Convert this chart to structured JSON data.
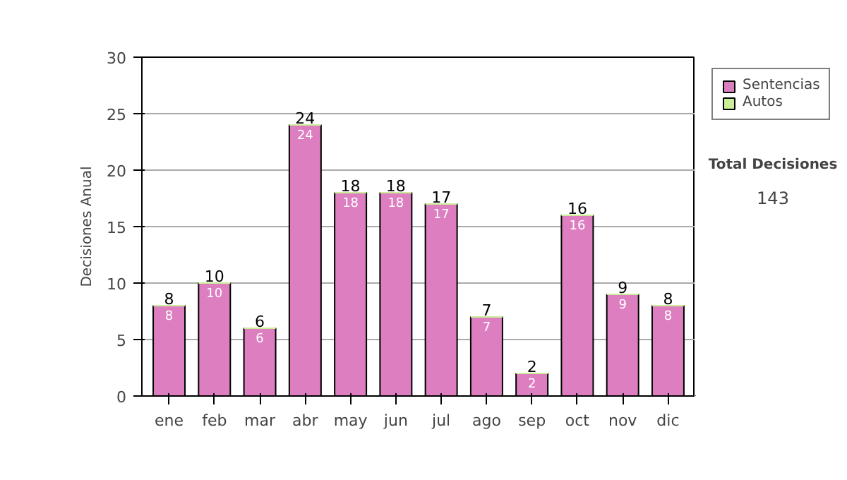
{
  "chart_data": {
    "type": "bar",
    "ylabel": "Decisiones Anual",
    "categories": [
      "ene",
      "feb",
      "mar",
      "abr",
      "may",
      "jun",
      "jul",
      "ago",
      "sep",
      "oct",
      "nov",
      "dic"
    ],
    "stacked": true,
    "series": [
      {
        "name": "Sentencias",
        "color": "#dd7ec0",
        "values": [
          8,
          10,
          6,
          24,
          18,
          18,
          17,
          7,
          2,
          16,
          9,
          8
        ],
        "value_labels": [
          "8",
          "10",
          "6",
          "24",
          "18",
          "18",
          "17",
          "7",
          "2",
          "16",
          "9",
          "8"
        ]
      },
      {
        "name": "Autos",
        "color": "#ccee99",
        "values": [
          0,
          0,
          0,
          0,
          0,
          0,
          0,
          0,
          0,
          0,
          0,
          0
        ]
      }
    ],
    "totals": [
      "8",
      "10",
      "6",
      "24",
      "18",
      "18",
      "17",
      "7",
      "2",
      "16",
      "9",
      "8"
    ],
    "ylim": [
      0,
      30
    ],
    "yticks": [
      0,
      5,
      10,
      15,
      20,
      25,
      30
    ],
    "grid": "y",
    "legend": "right",
    "annotations": [
      "Total Decisiones",
      "143"
    ]
  }
}
